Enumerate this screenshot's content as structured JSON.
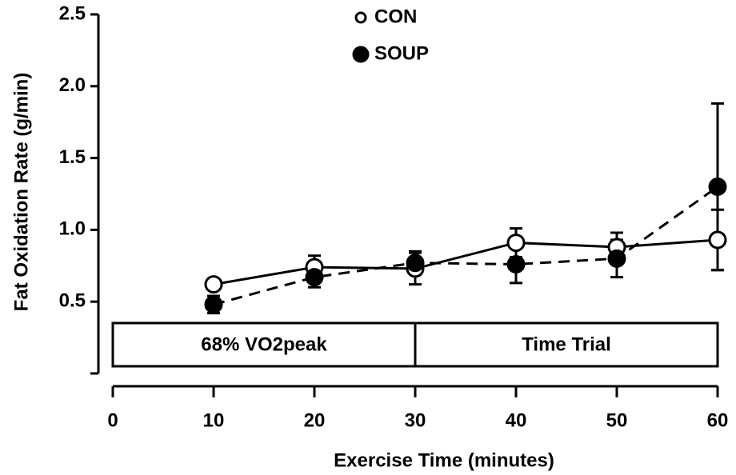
{
  "chart_data": {
    "type": "line",
    "xlabel": "Exercise Time (minutes)",
    "ylabel": "Fat Oxidation Rate (g/min)",
    "x": [
      10,
      20,
      30,
      40,
      50,
      60
    ],
    "series": [
      {
        "name": "CON",
        "color": "#000000",
        "marker": "open",
        "linestyle": "solid",
        "values": [
          0.62,
          0.74,
          0.73,
          0.91,
          0.88,
          0.93
        ],
        "errors": [
          0.03,
          0.08,
          0.11,
          0.1,
          0.1,
          0.21
        ]
      },
      {
        "name": "SOUP",
        "color": "#000000",
        "marker": "filled",
        "linestyle": "dashed",
        "values": [
          0.48,
          0.67,
          0.77,
          0.76,
          0.8,
          1.3
        ],
        "errors": [
          0.06,
          0.07,
          0.08,
          0.13,
          0.13,
          0.58
        ]
      }
    ],
    "phases": [
      {
        "label": "68% VO2peak",
        "start": 0,
        "end": 30
      },
      {
        "label": "Time Trial",
        "start": 30,
        "end": 60
      }
    ],
    "xlim": [
      0,
      60
    ],
    "xticks": [
      0,
      10,
      20,
      30,
      40,
      50,
      60
    ],
    "ylim": [
      0,
      2.5
    ],
    "yticks": [
      0.5,
      {
        "value": 1,
        "label": "1.0"
      },
      1.5,
      {
        "value": 2,
        "label": "2.0"
      },
      2.5
    ],
    "legend": "top",
    "grid": false
  }
}
